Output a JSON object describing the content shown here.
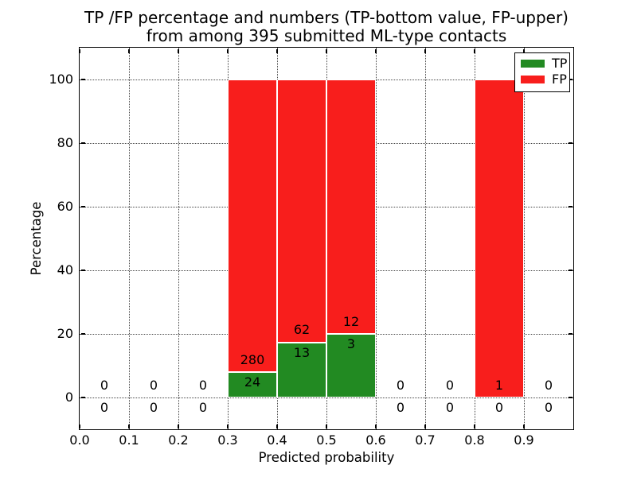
{
  "chart_data": {
    "type": "bar",
    "stacking": "percentage",
    "title_lines": [
      "TP /FP percentage and numbers (TP-bottom value, FP-upper)",
      "from among 395 submitted ML-type contacts"
    ],
    "total_submitted": 395,
    "xlabel": "Predicted probability",
    "ylabel": "Percentage",
    "xlim": [
      0.0,
      1.0
    ],
    "ylim": [
      -10,
      110
    ],
    "grid": true,
    "xticks": [
      "0.0",
      "0.1",
      "0.2",
      "0.3",
      "0.4",
      "0.5",
      "0.6",
      "0.7",
      "0.8",
      "0.9"
    ],
    "yticks": [
      0,
      20,
      40,
      60,
      80,
      100
    ],
    "legend": {
      "position": "upper right",
      "entries": [
        {
          "label": "TP",
          "color": "#228a22"
        },
        {
          "label": "FP",
          "color": "#f81e1c"
        }
      ]
    },
    "bins": [
      {
        "x0": 0.0,
        "x1": 0.1,
        "tp": 0,
        "fp": 0
      },
      {
        "x0": 0.1,
        "x1": 0.2,
        "tp": 0,
        "fp": 0
      },
      {
        "x0": 0.2,
        "x1": 0.3,
        "tp": 0,
        "fp": 0
      },
      {
        "x0": 0.3,
        "x1": 0.4,
        "tp": 24,
        "fp": 280
      },
      {
        "x0": 0.4,
        "x1": 0.5,
        "tp": 13,
        "fp": 62
      },
      {
        "x0": 0.5,
        "x1": 0.6,
        "tp": 3,
        "fp": 12
      },
      {
        "x0": 0.6,
        "x1": 0.7,
        "tp": 0,
        "fp": 0
      },
      {
        "x0": 0.7,
        "x1": 0.8,
        "tp": 0,
        "fp": 0
      },
      {
        "x0": 0.8,
        "x1": 0.9,
        "tp": 0,
        "fp": 1
      },
      {
        "x0": 0.9,
        "x1": 1.0,
        "tp": 0,
        "fp": 0
      }
    ]
  }
}
